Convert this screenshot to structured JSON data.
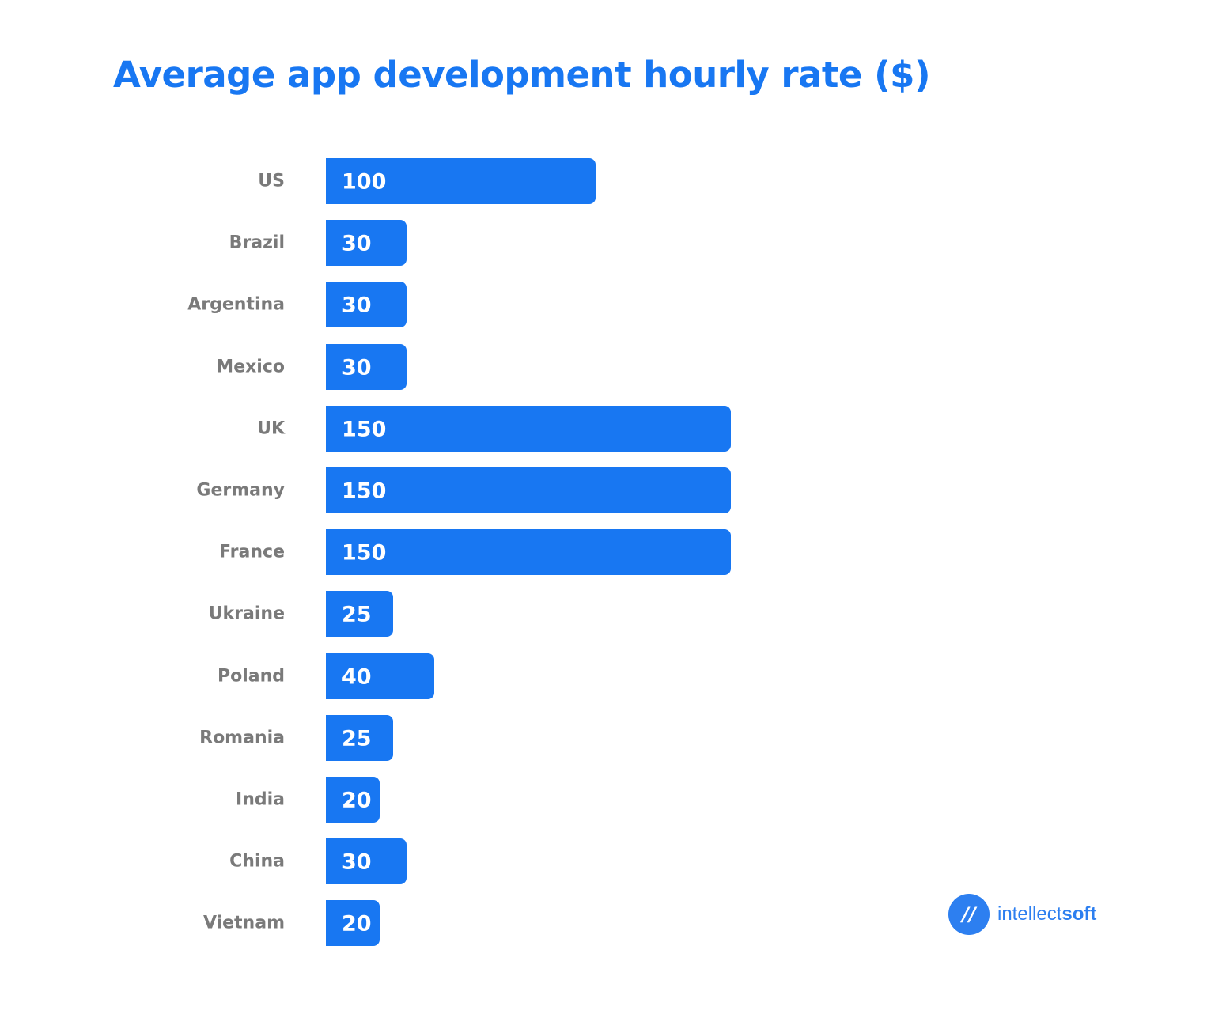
{
  "chart_data": {
    "type": "bar",
    "orientation": "horizontal",
    "title": "Average app development hourly rate ($)",
    "categories": [
      "US",
      "Brazil",
      "Argentina",
      "Mexico",
      "UK",
      "Germany",
      "France",
      "Ukraine",
      "Poland",
      "Romania",
      "India",
      "China",
      "Vietnam"
    ],
    "values": [
      100,
      30,
      30,
      30,
      150,
      150,
      150,
      25,
      40,
      25,
      20,
      30,
      20
    ],
    "data_labels": true,
    "grid": false,
    "bar_color": "#1877F2"
  },
  "branding": {
    "logo_text_light": "intellect",
    "logo_text_bold": "soft",
    "logo_mark": "//"
  }
}
